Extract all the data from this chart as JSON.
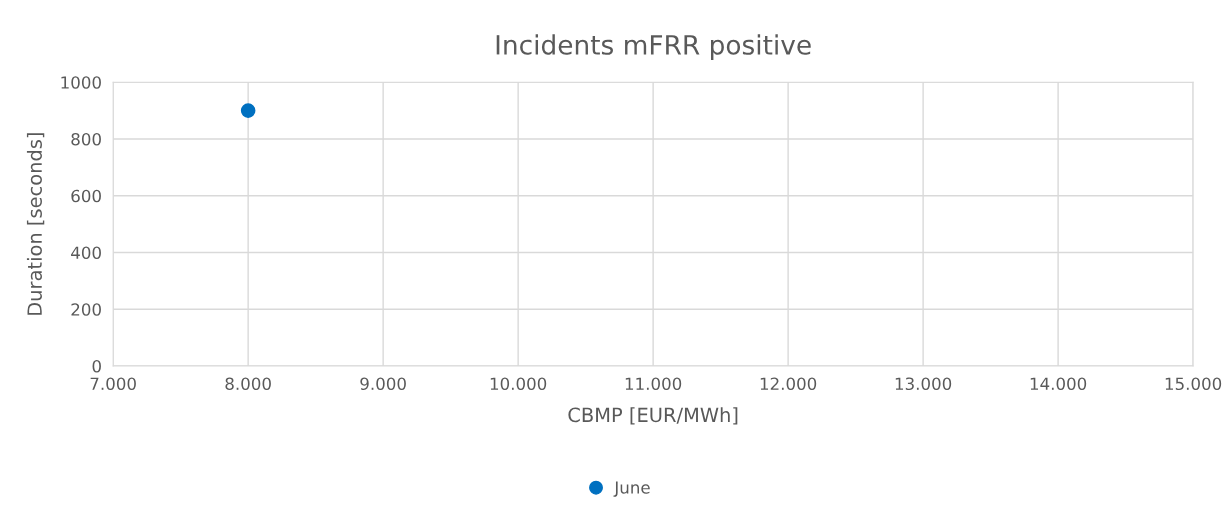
{
  "chart_data": {
    "type": "scatter",
    "title": "Incidents mFRR positive",
    "xlabel": "CBMP [EUR/MWh]",
    "ylabel": "Duration [seconds]",
    "x": [
      8000
    ],
    "series": [
      {
        "name": "June",
        "color": "#0070c0",
        "values": [
          900
        ]
      }
    ],
    "xlim": [
      7000,
      15000
    ],
    "xticks": [
      {
        "value": 7000,
        "label": "7.000"
      },
      {
        "value": 8000,
        "label": "8.000"
      },
      {
        "value": 9000,
        "label": "9.000"
      },
      {
        "value": 10000,
        "label": "10.000"
      },
      {
        "value": 11000,
        "label": "11.000"
      },
      {
        "value": 12000,
        "label": "12.000"
      },
      {
        "value": 13000,
        "label": "13.000"
      },
      {
        "value": 14000,
        "label": "14.000"
      },
      {
        "value": 15000,
        "label": "15.000"
      }
    ],
    "ylim": [
      0,
      1000
    ],
    "yticks": [
      0,
      200,
      400,
      600,
      800,
      1000
    ],
    "grid": true,
    "legend": "bottom",
    "marker": "circle"
  }
}
